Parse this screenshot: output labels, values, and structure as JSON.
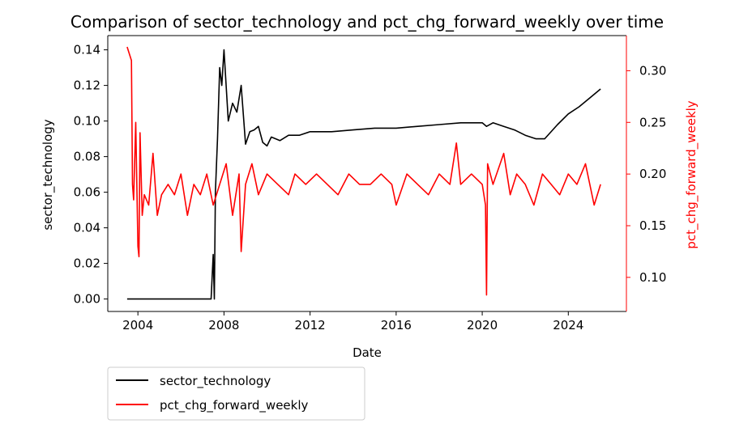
{
  "chart_data": {
    "type": "line",
    "title": "Comparison of sector_technology and pct_chg_forward_weekly over time",
    "xlabel": "Date",
    "ylabel_left": "sector_technology",
    "ylabel_right": "pct_chg_forward_weekly",
    "xlim": [
      2002.6,
      2026.7
    ],
    "ylim_left": [
      -0.007,
      0.148
    ],
    "ylim_right": [
      0.067,
      0.334
    ],
    "x_ticks": [
      "2004",
      "2008",
      "2012",
      "2016",
      "2020",
      "2024"
    ],
    "y_left_ticks": [
      "0.00",
      "0.02",
      "0.04",
      "0.06",
      "0.08",
      "0.10",
      "0.12",
      "0.14"
    ],
    "y_right_ticks": [
      "0.10",
      "0.15",
      "0.20",
      "0.25",
      "0.30"
    ],
    "grid": false,
    "legend_position": "below-left",
    "colors": {
      "left_series": "#000000",
      "right_series": "#ff0000"
    },
    "series": [
      {
        "name": "sector_technology",
        "axis": "left",
        "color": "#000000",
        "x": [
          2003.5,
          2006.0,
          2007.4,
          2007.5,
          2007.55,
          2007.6,
          2007.65,
          2007.7,
          2007.8,
          2007.9,
          2008.0,
          2008.2,
          2008.4,
          2008.6,
          2008.8,
          2009.0,
          2009.2,
          2009.4,
          2009.6,
          2009.8,
          2010.0,
          2010.2,
          2010.6,
          2011.0,
          2011.5,
          2012.0,
          2013.0,
          2014.0,
          2015.0,
          2016.0,
          2017.0,
          2018.0,
          2019.0,
          2020.0,
          2020.2,
          2020.5,
          2021.0,
          2021.5,
          2022.0,
          2022.5,
          2022.9,
          2023.5,
          2024.0,
          2024.5,
          2025.0,
          2025.5
        ],
        "y": [
          0.0,
          0.0,
          0.0,
          0.025,
          0.0,
          0.06,
          0.075,
          0.09,
          0.13,
          0.12,
          0.14,
          0.1,
          0.11,
          0.105,
          0.12,
          0.087,
          0.094,
          0.095,
          0.097,
          0.088,
          0.086,
          0.091,
          0.089,
          0.092,
          0.092,
          0.094,
          0.094,
          0.095,
          0.096,
          0.096,
          0.097,
          0.098,
          0.099,
          0.099,
          0.097,
          0.099,
          0.097,
          0.095,
          0.092,
          0.09,
          0.09,
          0.098,
          0.104,
          0.108,
          0.113,
          0.118
        ]
      },
      {
        "name": "pct_chg_forward_weekly",
        "axis": "right",
        "color": "#ff0000",
        "x": [
          2003.5,
          2003.7,
          2003.75,
          2003.8,
          2003.9,
          2004.0,
          2004.05,
          2004.1,
          2004.2,
          2004.3,
          2004.5,
          2004.7,
          2004.9,
          2005.1,
          2005.4,
          2005.7,
          2006.0,
          2006.3,
          2006.6,
          2006.9,
          2007.2,
          2007.5,
          2007.8,
          2008.1,
          2008.4,
          2008.7,
          2008.8,
          2009.0,
          2009.3,
          2009.6,
          2010.0,
          2010.5,
          2011.0,
          2011.3,
          2011.8,
          2012.3,
          2012.8,
          2013.3,
          2013.8,
          2014.3,
          2014.8,
          2015.3,
          2015.8,
          2016.0,
          2016.5,
          2017.0,
          2017.5,
          2018.0,
          2018.5,
          2018.8,
          2019.0,
          2019.5,
          2020.0,
          2020.15,
          2020.2,
          2020.25,
          2020.5,
          2021.0,
          2021.3,
          2021.6,
          2022.0,
          2022.4,
          2022.8,
          2023.2,
          2023.6,
          2024.0,
          2024.4,
          2024.8,
          2025.2,
          2025.5
        ],
        "y": [
          0.323,
          0.31,
          0.19,
          0.175,
          0.25,
          0.13,
          0.12,
          0.24,
          0.16,
          0.18,
          0.17,
          0.22,
          0.16,
          0.18,
          0.19,
          0.18,
          0.2,
          0.16,
          0.19,
          0.18,
          0.2,
          0.17,
          0.19,
          0.21,
          0.16,
          0.2,
          0.125,
          0.19,
          0.21,
          0.18,
          0.2,
          0.19,
          0.18,
          0.2,
          0.19,
          0.2,
          0.19,
          0.18,
          0.2,
          0.19,
          0.19,
          0.2,
          0.19,
          0.17,
          0.2,
          0.19,
          0.18,
          0.2,
          0.19,
          0.23,
          0.19,
          0.2,
          0.19,
          0.17,
          0.083,
          0.21,
          0.19,
          0.22,
          0.18,
          0.2,
          0.19,
          0.17,
          0.2,
          0.19,
          0.18,
          0.2,
          0.19,
          0.21,
          0.17,
          0.19
        ]
      }
    ]
  }
}
